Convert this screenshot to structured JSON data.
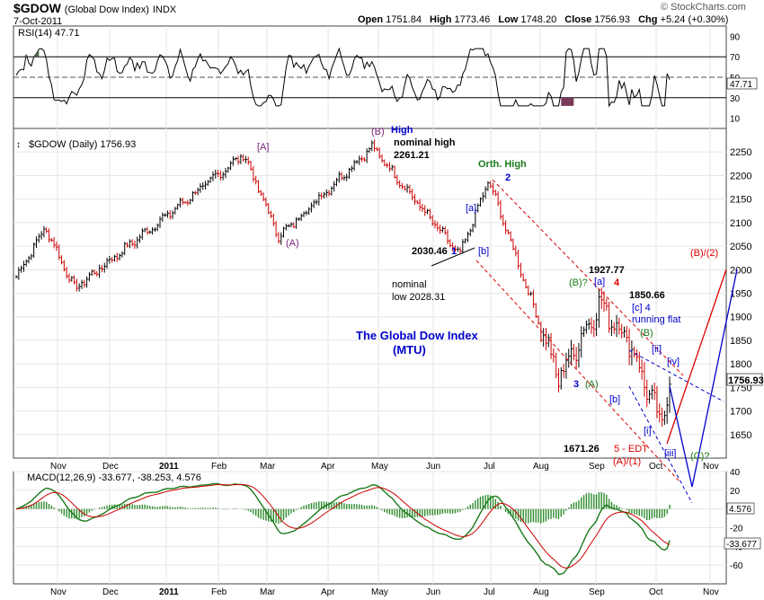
{
  "header": {
    "symbol": "$GDOW",
    "name": "(Global Dow Index)",
    "exchange": "INDX",
    "date": "7-Oct-2011",
    "open_label": "Open",
    "open": "1751.84",
    "high_label": "High",
    "high": "1773.46",
    "low_label": "Low",
    "low": "1748.20",
    "close_label": "Close",
    "close": "1756.93",
    "chg_label": "Chg",
    "chg": "+5.24 (+0.30%)",
    "watermark": "© StockCharts.com"
  },
  "colors": {
    "price_up": "#000000",
    "price_down": "#cc0000",
    "annotation_blue": "#0000cc",
    "annotation_red": "#dd0000",
    "annotation_green": "#1a7a1a",
    "annotation_purple": "#7b1f7b",
    "macd_line": "#1a7a1a",
    "signal_line": "#cc0000",
    "histogram": "#2e8b2e",
    "rsi_line": "#000000"
  },
  "chart_data": [
    {
      "type": "line",
      "title": "RSI(14) 47.71",
      "indicator": "RSI",
      "period": 14,
      "current": 47.71,
      "current_label": "47.71",
      "ylim": [
        0,
        100
      ],
      "y_ticks": [
        10,
        30,
        50,
        70,
        90
      ],
      "y_tick_labels": [
        "10",
        "30",
        "50",
        "70",
        "90"
      ],
      "reference_lines": [
        30,
        50,
        70
      ]
    },
    {
      "type": "bar",
      "title": "$GDOW (Daily) 1756.93",
      "ohlc": true,
      "ylim": [
        1600,
        2300
      ],
      "y_ticks": [
        1650,
        1700,
        1750,
        1800,
        1850,
        1900,
        1950,
        2000,
        2050,
        2100,
        2150,
        2200,
        2250
      ],
      "y_tick_labels": [
        "1650",
        "1700",
        "1750",
        "1800",
        "1850",
        "1900",
        "1950",
        "2000",
        "2050",
        "2100",
        "2150",
        "2200",
        "2250"
      ],
      "last_price_label": "1756.93",
      "x_tick_labels": [
        "Nov",
        "Dec",
        "2011",
        "Feb",
        "Mar",
        "Apr",
        "May",
        "Jun",
        "Jul",
        "Aug",
        "Sep",
        "Oct",
        "Nov"
      ],
      "key_points": [
        {
          "label": "Oct 2010 start",
          "month_index": 0.0,
          "value": 1985
        },
        {
          "label": "mid Nov",
          "month_index": 0.5,
          "value": 2090
        },
        {
          "label": "late Nov low",
          "month_index": 1.0,
          "value": 1960
        },
        {
          "label": "Feb high",
          "month_index": 3.9,
          "value": 2245
        },
        {
          "label": "Mar low (A)",
          "month_index": 4.5,
          "value": 2070
        },
        {
          "label": "May high (B)",
          "month_index": 6.1,
          "value": 2261.21
        },
        {
          "label": "Jun low [b]",
          "month_index": 7.6,
          "value": 2030.46
        },
        {
          "label": "Jul high 2",
          "month_index": 8.1,
          "value": 2190
        },
        {
          "label": "Aug low 3",
          "month_index": 9.3,
          "value": 1770
        },
        {
          "label": "Aug high 4",
          "month_index": 10.0,
          "value": 1927.77
        },
        {
          "label": "Sep high",
          "month_index": 10.5,
          "value": 1850.66
        },
        {
          "label": "Oct low 5",
          "month_index": 11.05,
          "value": 1671.26
        },
        {
          "label": "Close",
          "month_index": 11.2,
          "value": 1756.93
        }
      ],
      "annotations": {
        "wave_B": "(B)",
        "high": "High",
        "nominal_high": "nominal high",
        "nominal_high_value": "2261.21",
        "bracket_A": "[A]",
        "wave_A": "(A)",
        "orth_high": "Orth. High",
        "wave_2": "2",
        "sub_a1": "[a]",
        "low_2030": "2030.46",
        "wave_1": "1",
        "sub_b1": "[b]",
        "nominal_low": "nominal",
        "nominal_low2": "low 2028.31",
        "value_1927": "1927.77",
        "wave_4_red": "4",
        "wave_B_q": "(B)?",
        "sub_a2": "[a]",
        "value_1850": "1850.66",
        "sub_c4": "[c] 4",
        "running_flat": "running flat",
        "wave_B_green": "(B)",
        "title1": "The Global Dow Index",
        "title2": "(MTU)",
        "sub_ii": "[ii]",
        "sub_iv": "[iv]",
        "wave_3": "3",
        "wave_A_green": "(A)",
        "sub_b2": "[b]",
        "sub_i": "[i]",
        "sub_iii": "[iii]",
        "value_1671": "1671.26",
        "edt": "5 - EDT",
        "wave_A1": "(A)/(1)",
        "wave_C": "(C)?",
        "wave_B2": "(B)/(2)"
      }
    },
    {
      "type": "line",
      "title": "MACD(12,26,9) -33.677, -38.253, 4.576",
      "indicator": "MACD",
      "params": [
        12,
        26,
        9
      ],
      "macd": -33.677,
      "signal": -38.253,
      "histogram": 4.576,
      "macd_label": "-33.677",
      "hist_label": "4.576",
      "ylim": [
        -80,
        40
      ],
      "y_ticks": [
        -60,
        -40,
        -20,
        0,
        20,
        40
      ],
      "y_tick_labels": [
        "-60",
        "-40",
        "-20",
        "0",
        "20",
        "40"
      ],
      "x_tick_labels": [
        "Nov",
        "Dec",
        "2011",
        "Feb",
        "Mar",
        "Apr",
        "May",
        "Jun",
        "Jul",
        "Aug",
        "Sep",
        "Oct",
        "Nov"
      ]
    }
  ]
}
